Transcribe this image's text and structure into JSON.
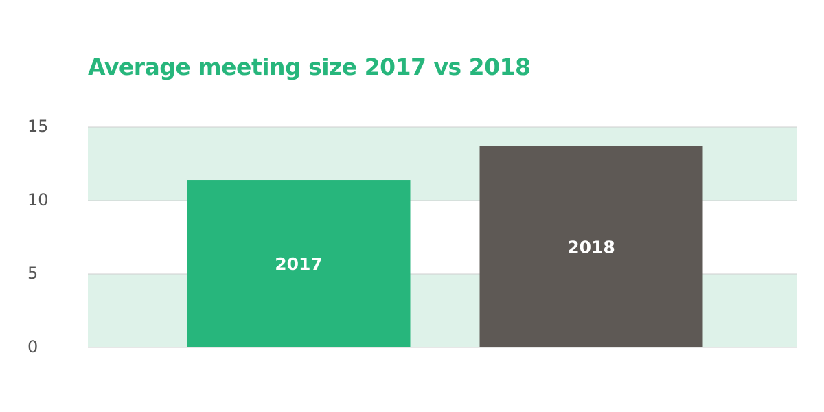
{
  "chart_data": {
    "type": "bar",
    "title": "Average meeting size 2017 vs 2018",
    "categories": [
      "2017",
      "2018"
    ],
    "values": [
      11.4,
      13.7
    ],
    "bar_colors": [
      "#27b67c",
      "#5e5955"
    ],
    "ylim": [
      0,
      15
    ],
    "yticks": [
      0,
      5,
      10,
      15
    ],
    "grid": true,
    "band_color": "#def2e9",
    "legend": "none",
    "xlabel": "",
    "ylabel": ""
  },
  "colors": {
    "title": "#27b67c",
    "grid_line": "#cfcfcf",
    "tick_text": "#555555",
    "bar_label_text": "#ffffff"
  }
}
